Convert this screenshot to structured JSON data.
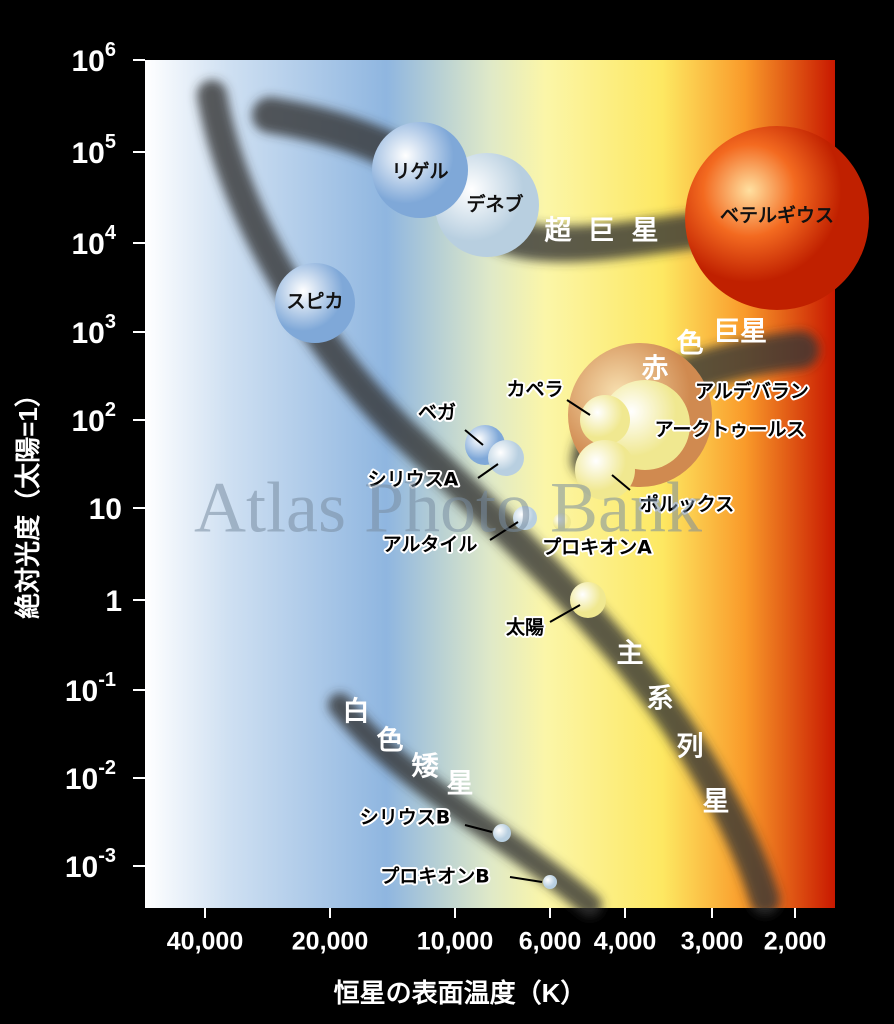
{
  "axes": {
    "y_label": "絶対光度（太陽=1）",
    "x_label": "恒星の表面温度（K）",
    "y_ticks": [
      {
        "base": "10",
        "exp": "6"
      },
      {
        "base": "10",
        "exp": "5"
      },
      {
        "base": "10",
        "exp": "4"
      },
      {
        "base": "10",
        "exp": "3"
      },
      {
        "base": "10",
        "exp": "2"
      },
      {
        "base": "10"
      },
      {
        "base": "1"
      },
      {
        "base": "10",
        "exp": "-1"
      },
      {
        "base": "10",
        "exp": "-2"
      },
      {
        "base": "10",
        "exp": "-3"
      }
    ],
    "x_ticks": [
      "40,000",
      "20,000",
      "10,000",
      "6,000",
      "4,000",
      "3,000",
      "2,000"
    ]
  },
  "stars": [
    "リゲル",
    "デネブ",
    "ベテルギウス",
    "スピカ",
    "ベガ",
    "シリウスA",
    "カペラ",
    "アルデバラン",
    "アークトゥールス",
    "ポルックス",
    "アルタイル",
    "プロキオンA",
    "太陽",
    "シリウスB",
    "プロキオンB"
  ],
  "regions": {
    "supergiants": [
      "超",
      "巨",
      "星"
    ],
    "red_giants": [
      "赤",
      "色",
      "巨星"
    ],
    "main_sequence": [
      "主",
      "系",
      "列",
      "星"
    ],
    "white_dwarfs": [
      "白",
      "色",
      "矮",
      "星"
    ]
  },
  "watermark": "Atlas Photo Bank"
}
